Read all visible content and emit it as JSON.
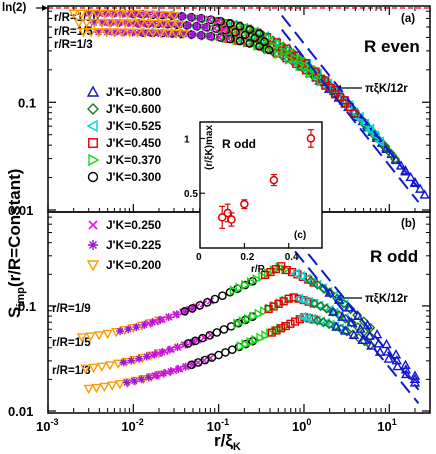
{
  "y_axis_label": "S",
  "y_axis_sub": "imp",
  "y_axis_rest": "(r/R=Constant)",
  "x_axis_label": "r/ξ",
  "x_axis_sub": "K",
  "ln2_label": "ln(2)",
  "colors": {
    "J0.800": "#1414d2",
    "J0.600": "#1a7a1a",
    "J0.525": "#00d6d6",
    "J0.450": "#e00000",
    "J0.370": "#16d616",
    "J0.300": "#000000",
    "J0.250": "#e016e0",
    "J0.225": "#9a16d6",
    "J0.200": "#ff9a00",
    "ln2": "#e00000",
    "asym": "#0a1ad0"
  },
  "chart_data": [
    {
      "panel": "(a)",
      "type": "scatter",
      "title": "R even",
      "log_x": true,
      "log_y": true,
      "xlim": [
        0.001,
        30
      ],
      "ylim": [
        0.01,
        0.75
      ],
      "x_ticks": [
        "10-3",
        "10-2",
        "10-1",
        "100",
        "101"
      ],
      "y_ticks": [
        "0.01",
        "0.1"
      ],
      "hline": {
        "label": "ln(2)",
        "y": 0.693
      },
      "annotation": "πξK/12r",
      "ratio_labels": [
        "r/R=1/10",
        "r/R=1/5",
        "r/R=1/3"
      ],
      "legend": [
        {
          "label": "J'K=0.800",
          "key": "J0.800",
          "marker": "triangle-up"
        },
        {
          "label": "J'K=0.600",
          "key": "J0.600",
          "marker": "diamond"
        },
        {
          "label": "J'K=0.525",
          "key": "J0.525",
          "marker": "triangle-left"
        },
        {
          "label": "J'K=0.450",
          "key": "J0.450",
          "marker": "square"
        },
        {
          "label": "J'K=0.370",
          "key": "J0.370",
          "marker": "triangle-right"
        },
        {
          "label": "J'K=0.300",
          "key": "J0.300",
          "marker": "circle"
        }
      ],
      "series": [
        {
          "key": "J0.800",
          "marker": "triangle-up",
          "x0": 0.7,
          "x1": 20
        },
        {
          "key": "J0.600",
          "marker": "diamond",
          "x0": 0.25,
          "x1": 9
        },
        {
          "key": "J0.525",
          "marker": "triangle-left",
          "x0": 0.15,
          "x1": 6
        },
        {
          "key": "J0.450",
          "marker": "square",
          "x0": 0.1,
          "x1": 3
        },
        {
          "key": "J0.370",
          "marker": "triangle-right",
          "x0": 0.03,
          "x1": 1.2
        },
        {
          "key": "J0.300",
          "marker": "circle",
          "x0": 0.01,
          "x1": 0.3
        },
        {
          "key": "J0.250",
          "marker": "x",
          "x0": 0.004,
          "x1": 0.1
        },
        {
          "key": "J0.225",
          "marker": "star",
          "x0": 0.003,
          "x1": 0.06
        },
        {
          "key": "J0.200",
          "marker": "triangle-down",
          "x0": 0.002,
          "x1": 0.03
        }
      ],
      "branch_plateaus": [
        0.67,
        0.55,
        0.45
      ],
      "asymptote": {
        "formula": "πξK/12r",
        "y_at_x1": 0.26
      }
    },
    {
      "panel": "(b)",
      "type": "scatter",
      "title": "R odd",
      "log_x": true,
      "log_y": true,
      "xlim": [
        0.001,
        30
      ],
      "ylim": [
        0.01,
        0.75
      ],
      "x_ticks": [
        "10-3",
        "10-2",
        "10-1",
        "100",
        "101"
      ],
      "y_ticks": [
        "0.01",
        "0.1"
      ],
      "annotation": "πξK/12r",
      "ratio_labels": [
        "r/R=1/9",
        "r/R=1/5",
        "r/R=1/3"
      ],
      "legend": [
        {
          "label": "J'K=0.250",
          "key": "J0.250",
          "marker": "x"
        },
        {
          "label": "J'K=0.225",
          "key": "J0.225",
          "marker": "star"
        },
        {
          "label": "J'K=0.200",
          "key": "J0.200",
          "marker": "triangle-down"
        }
      ],
      "branches": [
        {
          "ratio": "1/9",
          "x_peak": 0.6,
          "y_peak": 0.25,
          "y_left": 0.05
        },
        {
          "ratio": "1/5",
          "x_peak": 0.7,
          "y_peak": 0.12,
          "y_left": 0.025
        },
        {
          "ratio": "1/3",
          "x_peak": 0.9,
          "y_peak": 0.075,
          "y_left": 0.016
        }
      ]
    },
    {
      "panel": "(c)",
      "type": "scatter",
      "title": "R odd",
      "xlabel": "r/R",
      "ylabel": "(r/ξK)max",
      "xlim": [
        0,
        0.55
      ],
      "ylim": [
        0,
        1.15
      ],
      "x_ticks": [
        "0",
        "0.2",
        "0.4"
      ],
      "y_ticks": [
        "0.5",
        "1"
      ],
      "points": [
        {
          "x": 0.1,
          "y": 0.28,
          "err": 0.1
        },
        {
          "x": 0.125,
          "y": 0.32,
          "err": 0.08
        },
        {
          "x": 0.142,
          "y": 0.26,
          "err": 0.06
        },
        {
          "x": 0.2,
          "y": 0.4,
          "err": 0.04
        },
        {
          "x": 0.333,
          "y": 0.62,
          "err": 0.05
        },
        {
          "x": 0.5,
          "y": 1.0,
          "err": 0.08
        }
      ]
    }
  ]
}
